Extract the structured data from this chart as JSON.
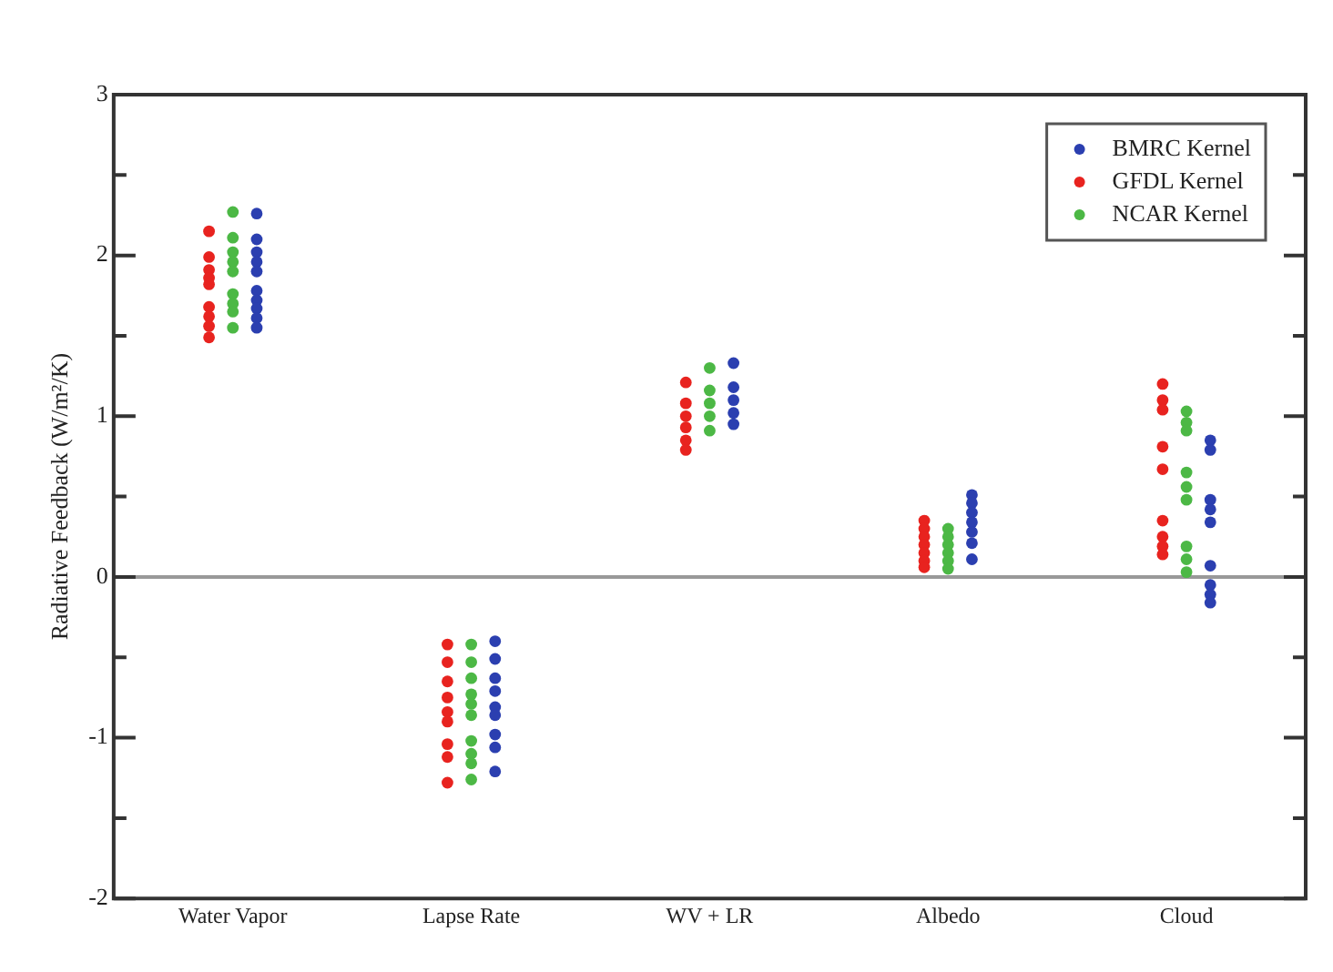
{
  "chart_data": {
    "type": "scatter",
    "ylabel": "Radiative Feedback (W/m²/K)",
    "categories": [
      "Water Vapor",
      "Lapse Rate",
      "WV + LR",
      "Albedo",
      "Cloud"
    ],
    "ylim": [
      -2,
      3
    ],
    "yticks": [
      -2,
      {
        "value": -1.5,
        "label": null
      },
      -1,
      {
        "value": -0.5,
        "label": null
      },
      0,
      {
        "value": 0.5,
        "label": null
      },
      1,
      {
        "value": 1.5,
        "label": null
      },
      2,
      {
        "value": 2.5,
        "label": null
      },
      3
    ],
    "grid": false,
    "legend": "top right",
    "marker": "circle",
    "ref_lines": [
      {
        "axis": "y",
        "value": 0,
        "color": "#999999"
      }
    ],
    "series": [
      {
        "name": "BMRC Kernel",
        "color": "#2b3fb0",
        "x": [
          "Water Vapor",
          "Water Vapor",
          "Water Vapor",
          "Water Vapor",
          "Water Vapor",
          "Water Vapor",
          "Water Vapor",
          "Water Vapor",
          "Water Vapor",
          "Water Vapor",
          "Lapse Rate",
          "Lapse Rate",
          "Lapse Rate",
          "Lapse Rate",
          "Lapse Rate",
          "Lapse Rate",
          "Lapse Rate",
          "Lapse Rate",
          "Lapse Rate",
          "WV + LR",
          "WV + LR",
          "WV + LR",
          "WV + LR",
          "WV + LR",
          "Albedo",
          "Albedo",
          "Albedo",
          "Albedo",
          "Albedo",
          "Albedo",
          "Albedo",
          "Cloud",
          "Cloud",
          "Cloud",
          "Cloud",
          "Cloud",
          "Cloud",
          "Cloud",
          "Cloud",
          "Cloud"
        ],
        "values": [
          2.26,
          2.1,
          2.02,
          1.96,
          1.9,
          1.78,
          1.72,
          1.67,
          1.61,
          1.55,
          -0.4,
          -0.51,
          -0.63,
          -0.71,
          -0.81,
          -0.86,
          -0.98,
          -1.06,
          -1.21,
          1.33,
          1.18,
          1.1,
          1.02,
          0.95,
          0.51,
          0.46,
          0.4,
          0.34,
          0.28,
          0.21,
          0.11,
          0.85,
          0.79,
          0.48,
          0.42,
          0.34,
          0.07,
          -0.05,
          -0.11,
          -0.16
        ]
      },
      {
        "name": "GFDL Kernel",
        "color": "#e8231f",
        "x": [
          "Water Vapor",
          "Water Vapor",
          "Water Vapor",
          "Water Vapor",
          "Water Vapor",
          "Water Vapor",
          "Water Vapor",
          "Water Vapor",
          "Water Vapor",
          "Lapse Rate",
          "Lapse Rate",
          "Lapse Rate",
          "Lapse Rate",
          "Lapse Rate",
          "Lapse Rate",
          "Lapse Rate",
          "Lapse Rate",
          "Lapse Rate",
          "WV + LR",
          "WV + LR",
          "WV + LR",
          "WV + LR",
          "WV + LR",
          "WV + LR",
          "Albedo",
          "Albedo",
          "Albedo",
          "Albedo",
          "Albedo",
          "Albedo",
          "Albedo",
          "Cloud",
          "Cloud",
          "Cloud",
          "Cloud",
          "Cloud",
          "Cloud",
          "Cloud",
          "Cloud",
          "Cloud"
        ],
        "values": [
          2.15,
          1.99,
          1.91,
          1.86,
          1.82,
          1.68,
          1.62,
          1.56,
          1.49,
          -0.42,
          -0.53,
          -0.65,
          -0.75,
          -0.84,
          -0.9,
          -1.04,
          -1.12,
          -1.28,
          1.21,
          1.08,
          1.0,
          0.93,
          0.85,
          0.79,
          0.35,
          0.3,
          0.25,
          0.2,
          0.15,
          0.1,
          0.06,
          1.2,
          1.1,
          1.04,
          0.81,
          0.67,
          0.35,
          0.25,
          0.19,
          0.14
        ]
      },
      {
        "name": "NCAR Kernel",
        "color": "#4cb845",
        "x": [
          "Water Vapor",
          "Water Vapor",
          "Water Vapor",
          "Water Vapor",
          "Water Vapor",
          "Water Vapor",
          "Water Vapor",
          "Water Vapor",
          "Water Vapor",
          "Lapse Rate",
          "Lapse Rate",
          "Lapse Rate",
          "Lapse Rate",
          "Lapse Rate",
          "Lapse Rate",
          "Lapse Rate",
          "Lapse Rate",
          "Lapse Rate",
          "Lapse Rate",
          "WV + LR",
          "WV + LR",
          "WV + LR",
          "WV + LR",
          "WV + LR",
          "Albedo",
          "Albedo",
          "Albedo",
          "Albedo",
          "Albedo",
          "Albedo",
          "Cloud",
          "Cloud",
          "Cloud",
          "Cloud",
          "Cloud",
          "Cloud",
          "Cloud",
          "Cloud",
          "Cloud"
        ],
        "values": [
          2.27,
          2.11,
          2.02,
          1.96,
          1.9,
          1.76,
          1.7,
          1.65,
          1.55,
          -0.42,
          -0.53,
          -0.63,
          -0.73,
          -0.79,
          -0.86,
          -1.02,
          -1.1,
          -1.16,
          -1.26,
          1.3,
          1.16,
          1.08,
          1.0,
          0.91,
          0.3,
          0.25,
          0.2,
          0.15,
          0.1,
          0.05,
          1.03,
          0.96,
          0.91,
          0.65,
          0.56,
          0.48,
          0.19,
          0.11,
          0.03
        ]
      }
    ]
  }
}
